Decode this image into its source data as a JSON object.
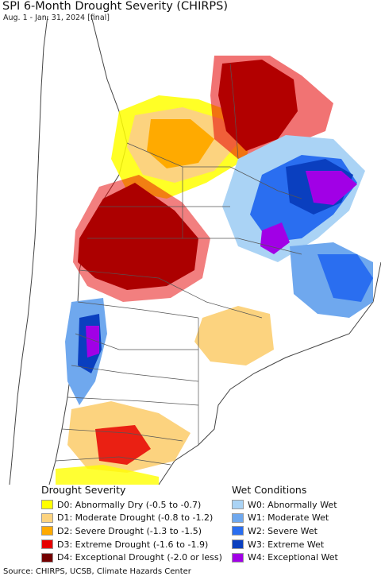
{
  "header": {
    "title": "SPI 6-Month Drought Severity (CHIRPS)",
    "subtitle": "Aug. 1 - Jan. 31, 2024 [final]"
  },
  "legend": {
    "drought": {
      "heading": "Drought Severity",
      "items": [
        {
          "label": "D0: Abnormally Dry (-0.5 to -0.7)",
          "color": "#ffff00"
        },
        {
          "label": "D1: Moderate Drought (-0.8 to -1.2)",
          "color": "#fcd37f"
        },
        {
          "label": "D2: Severe Drought (-1.3 to -1.5)",
          "color": "#ffaa00"
        },
        {
          "label": "D3: Extreme Drought (-1.6 to -1.9)",
          "color": "#e60000"
        },
        {
          "label": "D4: Exceptional Drought (-2.0 or less)",
          "color": "#730000"
        }
      ]
    },
    "wet": {
      "heading": "Wet Conditions",
      "items": [
        {
          "label": "W0: Abnormally Wet",
          "color": "#aad3f5"
        },
        {
          "label": "W1: Moderate Wet",
          "color": "#6fa8ee"
        },
        {
          "label": "W2: Severe Wet",
          "color": "#2a6ef0"
        },
        {
          "label": "W3: Extreme Wet",
          "color": "#0a3fbf"
        },
        {
          "label": "W4: Exceptional Wet",
          "color": "#a100e6"
        }
      ]
    }
  },
  "footer": {
    "source": "Source: CHIRPS, UCSB, Climate Hazards Center"
  },
  "colors": {
    "ocean": "#ffffff",
    "land_outside": "#ffffff",
    "no_drought": "#ffffff",
    "borders": "#555555"
  }
}
